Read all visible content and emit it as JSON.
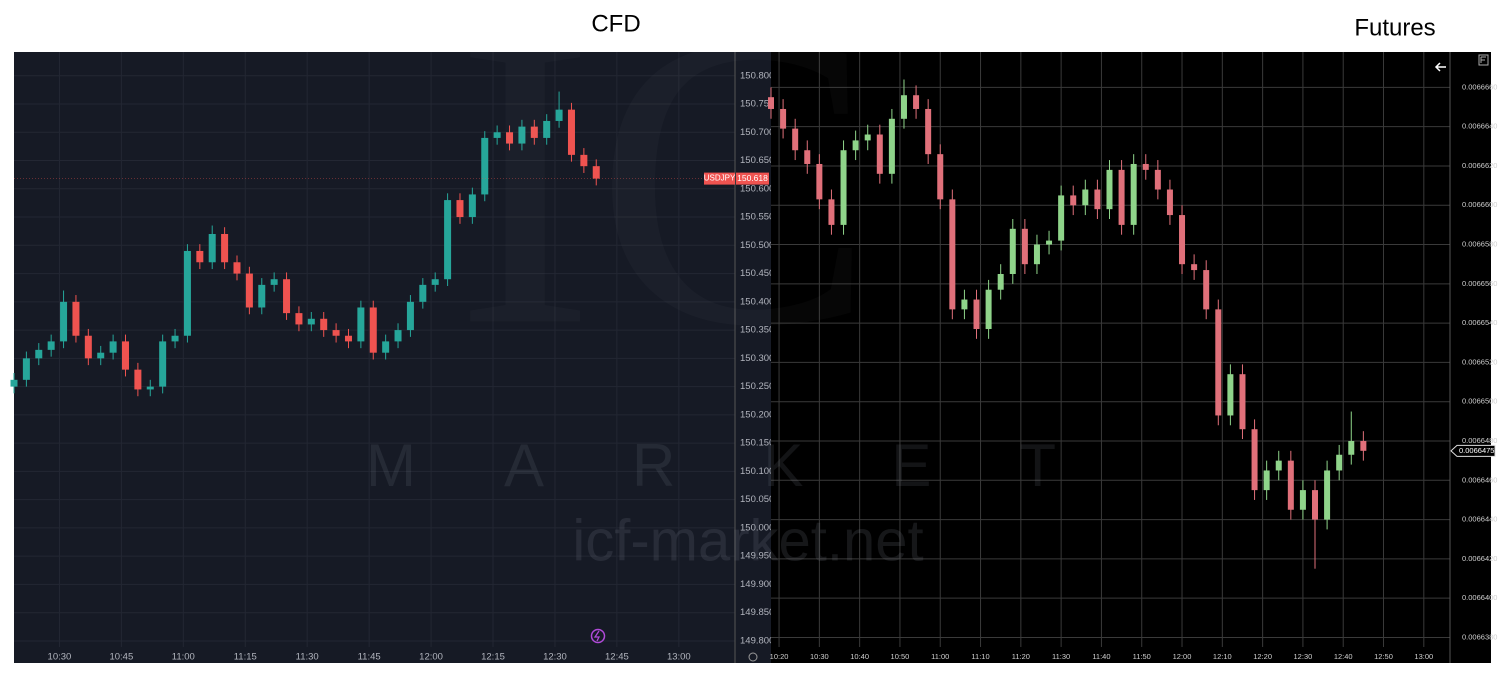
{
  "watermark": {
    "word": "MARKET",
    "site": "icf-market.net"
  },
  "chart_data": [
    {
      "type": "candlestick",
      "title": "CFD",
      "background": "#161a25",
      "up_color": "#26a69a",
      "down_color": "#ef5350",
      "grid": true,
      "last_price": {
        "symbol": "USDJPY",
        "value": 150.618
      },
      "xlim": [
        619,
        793.6
      ],
      "xticks": [
        {
          "value": 630,
          "label": "10:30"
        },
        {
          "value": 645,
          "label": "10:45"
        },
        {
          "value": 660,
          "label": "11:00"
        },
        {
          "value": 675,
          "label": "11:15"
        },
        {
          "value": 690,
          "label": "11:30"
        },
        {
          "value": 705,
          "label": "11:45"
        },
        {
          "value": 720,
          "label": "12:00"
        },
        {
          "value": 735,
          "label": "12:15"
        },
        {
          "value": 750,
          "label": "12:30"
        },
        {
          "value": 765,
          "label": "12:45"
        },
        {
          "value": 780,
          "label": "13:00"
        }
      ],
      "ylim": [
        149.761,
        150.842
      ],
      "yticks": [
        {
          "value": 149.8,
          "label": "149.800"
        },
        {
          "value": 149.85,
          "label": "149.850"
        },
        {
          "value": 149.9,
          "label": "149.900"
        },
        {
          "value": 149.95,
          "label": "149.950"
        },
        {
          "value": 150.0,
          "label": "150.000"
        },
        {
          "value": 150.05,
          "label": "150.050"
        },
        {
          "value": 150.1,
          "label": "150.100"
        },
        {
          "value": 150.15,
          "label": "150.150"
        },
        {
          "value": 150.2,
          "label": "150.200"
        },
        {
          "value": 150.25,
          "label": "150.250"
        },
        {
          "value": 150.3,
          "label": "150.300"
        },
        {
          "value": 150.35,
          "label": "150.350"
        },
        {
          "value": 150.4,
          "label": "150.400"
        },
        {
          "value": 150.45,
          "label": "150.450"
        },
        {
          "value": 150.5,
          "label": "150.500"
        },
        {
          "value": 150.55,
          "label": "150.550"
        },
        {
          "value": 150.6,
          "label": "150.600"
        },
        {
          "value": 150.65,
          "label": "150.650"
        },
        {
          "value": 150.7,
          "label": "150.700"
        },
        {
          "value": 150.75,
          "label": "150.750"
        },
        {
          "value": 150.8,
          "label": "150.800"
        }
      ],
      "x": [
        619,
        622,
        625,
        628,
        631,
        634,
        637,
        640,
        643,
        646,
        649,
        652,
        655,
        658,
        661,
        664,
        667,
        670,
        673,
        676,
        679,
        682,
        685,
        688,
        691,
        694,
        697,
        700,
        703,
        706,
        709,
        712,
        715,
        718,
        721,
        724,
        727,
        730,
        733,
        736,
        739,
        742,
        745,
        748,
        751,
        754,
        757,
        760
      ],
      "open": [
        150.25,
        150.262,
        150.3,
        150.315,
        150.33,
        150.4,
        150.34,
        150.3,
        150.31,
        150.33,
        150.28,
        150.245,
        150.25,
        150.33,
        150.34,
        150.49,
        150.47,
        150.52,
        150.47,
        150.45,
        150.39,
        150.43,
        150.44,
        150.38,
        150.36,
        150.37,
        150.35,
        150.34,
        150.33,
        150.39,
        150.31,
        150.33,
        150.35,
        150.4,
        150.43,
        150.44,
        150.58,
        150.55,
        150.59,
        150.69,
        150.7,
        150.68,
        150.71,
        150.69,
        150.72,
        150.74,
        150.66,
        150.64
      ],
      "high": [
        150.274,
        150.312,
        150.327,
        150.342,
        150.42,
        150.412,
        150.352,
        150.322,
        150.342,
        150.342,
        150.292,
        150.262,
        150.342,
        150.352,
        150.502,
        150.502,
        150.535,
        150.532,
        150.482,
        150.462,
        150.442,
        150.452,
        150.452,
        150.392,
        150.382,
        150.382,
        150.362,
        150.352,
        150.402,
        150.402,
        150.342,
        150.362,
        150.412,
        150.442,
        150.452,
        150.592,
        150.592,
        150.602,
        150.702,
        150.712,
        150.712,
        150.722,
        150.722,
        150.732,
        150.772,
        150.752,
        150.672,
        150.652
      ],
      "low": [
        150.238,
        150.25,
        150.288,
        150.303,
        150.318,
        150.328,
        150.288,
        150.288,
        150.298,
        150.268,
        150.233,
        150.233,
        150.238,
        150.318,
        150.328,
        150.458,
        150.458,
        150.458,
        150.438,
        150.378,
        150.378,
        150.418,
        150.368,
        150.348,
        150.348,
        150.338,
        150.328,
        150.318,
        150.318,
        150.298,
        150.298,
        150.318,
        150.338,
        150.388,
        150.418,
        150.428,
        150.538,
        150.538,
        150.578,
        150.678,
        150.668,
        150.668,
        150.678,
        150.678,
        150.708,
        150.648,
        150.628,
        150.606
      ],
      "close": [
        150.262,
        150.3,
        150.315,
        150.33,
        150.4,
        150.34,
        150.3,
        150.31,
        150.33,
        150.28,
        150.245,
        150.25,
        150.33,
        150.34,
        150.49,
        150.47,
        150.52,
        150.47,
        150.45,
        150.39,
        150.43,
        150.44,
        150.38,
        150.36,
        150.37,
        150.35,
        150.34,
        150.33,
        150.39,
        150.31,
        150.33,
        150.35,
        150.4,
        150.43,
        150.44,
        150.58,
        150.55,
        150.59,
        150.69,
        150.7,
        150.68,
        150.71,
        150.69,
        150.72,
        150.74,
        150.66,
        150.64,
        150.618
      ]
    },
    {
      "type": "candlestick",
      "title": "Futures",
      "background": "#000000",
      "up_color": "#8fd48a",
      "down_color": "#e0707a",
      "grid": true,
      "last_price": {
        "value": 0.0066475
      },
      "xlim": [
        618,
        786.5
      ],
      "xticks": [
        {
          "value": 620,
          "label": "10:20"
        },
        {
          "value": 630,
          "label": "10:30"
        },
        {
          "value": 640,
          "label": "10:40"
        },
        {
          "value": 650,
          "label": "10:50"
        },
        {
          "value": 660,
          "label": "11:00"
        },
        {
          "value": 670,
          "label": "11:10"
        },
        {
          "value": 680,
          "label": "11:20"
        },
        {
          "value": 690,
          "label": "11:30"
        },
        {
          "value": 700,
          "label": "11:40"
        },
        {
          "value": 710,
          "label": "11:50"
        },
        {
          "value": 720,
          "label": "12:00"
        },
        {
          "value": 730,
          "label": "12:10"
        },
        {
          "value": 740,
          "label": "12:20"
        },
        {
          "value": 750,
          "label": "12:30"
        },
        {
          "value": 760,
          "label": "12:40"
        },
        {
          "value": 770,
          "label": "12:50"
        },
        {
          "value": 780,
          "label": "13:00"
        }
      ],
      "ylim": [
        0.0066367,
        0.0066678
      ],
      "yticks": [
        {
          "value": 0.006638,
          "label": "0.0066380"
        },
        {
          "value": 0.00664,
          "label": "0.0066400"
        },
        {
          "value": 0.006642,
          "label": "0.0066420"
        },
        {
          "value": 0.006644,
          "label": "0.0066440"
        },
        {
          "value": 0.006646,
          "label": "0.0066460"
        },
        {
          "value": 0.006648,
          "label": "0.0066480"
        },
        {
          "value": 0.00665,
          "label": "0.0066500"
        },
        {
          "value": 0.006652,
          "label": "0.0066520"
        },
        {
          "value": 0.006654,
          "label": "0.0066540"
        },
        {
          "value": 0.006656,
          "label": "0.0066560"
        },
        {
          "value": 0.006658,
          "label": "0.0066580"
        },
        {
          "value": 0.00666,
          "label": "0.0066600"
        },
        {
          "value": 0.006662,
          "label": "0.0066620"
        },
        {
          "value": 0.006664,
          "label": "0.0066640"
        },
        {
          "value": 0.006666,
          "label": "0.0066660"
        }
      ],
      "x": [
        618,
        621,
        624,
        627,
        630,
        633,
        636,
        639,
        642,
        645,
        648,
        651,
        654,
        657,
        660,
        663,
        666,
        669,
        672,
        675,
        678,
        681,
        684,
        687,
        690,
        693,
        696,
        699,
        702,
        705,
        708,
        711,
        714,
        717,
        720,
        723,
        726,
        729,
        732,
        735,
        738,
        741,
        744,
        747,
        750,
        753,
        756,
        759,
        762,
        765
      ],
      "open": [
        0.0066655,
        0.0066649,
        0.0066639,
        0.0066628,
        0.0066621,
        0.0066603,
        0.006659,
        0.0066628,
        0.0066633,
        0.0066636,
        0.0066616,
        0.0066644,
        0.0066656,
        0.0066649,
        0.0066626,
        0.0066603,
        0.0066547,
        0.0066552,
        0.0066537,
        0.0066557,
        0.0066565,
        0.0066588,
        0.006657,
        0.006658,
        0.0066582,
        0.0066605,
        0.00666,
        0.0066608,
        0.0066598,
        0.0066618,
        0.006659,
        0.0066621,
        0.0066618,
        0.0066608,
        0.0066595,
        0.006657,
        0.0066567,
        0.0066547,
        0.0066493,
        0.0066514,
        0.0066486,
        0.0066455,
        0.0066465,
        0.006647,
        0.0066445,
        0.0066455,
        0.006644,
        0.0066465,
        0.0066473,
        0.006648
      ],
      "high": [
        0.006666,
        0.0066654,
        0.0066644,
        0.0066633,
        0.0066626,
        0.0066608,
        0.0066633,
        0.0066638,
        0.0066641,
        0.0066641,
        0.0066649,
        0.0066664,
        0.0066661,
        0.0066654,
        0.0066631,
        0.0066608,
        0.0066557,
        0.0066557,
        0.0066562,
        0.006657,
        0.0066593,
        0.0066593,
        0.0066585,
        0.0066587,
        0.006661,
        0.006661,
        0.0066613,
        0.0066613,
        0.0066623,
        0.0066623,
        0.0066626,
        0.0066626,
        0.0066623,
        0.0066613,
        0.00666,
        0.0066575,
        0.0066572,
        0.0066552,
        0.0066519,
        0.0066519,
        0.0066491,
        0.006647,
        0.0066475,
        0.0066475,
        0.006646,
        0.006646,
        0.006647,
        0.0066478,
        0.0066495,
        0.0066485
      ],
      "low": [
        0.0066644,
        0.0066634,
        0.0066623,
        0.0066616,
        0.0066598,
        0.0066585,
        0.0066585,
        0.0066623,
        0.0066628,
        0.0066611,
        0.0066611,
        0.0066639,
        0.0066644,
        0.0066621,
        0.0066598,
        0.0066542,
        0.0066542,
        0.0066532,
        0.0066532,
        0.0066552,
        0.006656,
        0.0066565,
        0.0066565,
        0.0066575,
        0.0066577,
        0.0066595,
        0.0066595,
        0.0066593,
        0.0066593,
        0.0066585,
        0.0066585,
        0.0066613,
        0.0066603,
        0.006659,
        0.0066565,
        0.0066562,
        0.0066542,
        0.0066488,
        0.0066488,
        0.0066481,
        0.006645,
        0.006645,
        0.006646,
        0.006644,
        0.006644,
        0.0066415,
        0.0066435,
        0.006646,
        0.0066468,
        0.006647
      ],
      "close": [
        0.0066649,
        0.0066639,
        0.0066628,
        0.0066621,
        0.0066603,
        0.006659,
        0.0066628,
        0.0066633,
        0.0066636,
        0.0066616,
        0.0066644,
        0.0066656,
        0.0066649,
        0.0066626,
        0.0066603,
        0.0066547,
        0.0066552,
        0.0066537,
        0.0066557,
        0.0066565,
        0.0066588,
        0.006657,
        0.006658,
        0.0066582,
        0.0066605,
        0.00666,
        0.0066608,
        0.0066598,
        0.0066618,
        0.006659,
        0.0066621,
        0.0066618,
        0.0066608,
        0.0066595,
        0.006657,
        0.0066567,
        0.0066547,
        0.0066493,
        0.0066514,
        0.0066486,
        0.0066455,
        0.0066465,
        0.006647,
        0.0066445,
        0.0066455,
        0.006644,
        0.0066465,
        0.0066473,
        0.006648,
        0.0066475
      ]
    }
  ]
}
